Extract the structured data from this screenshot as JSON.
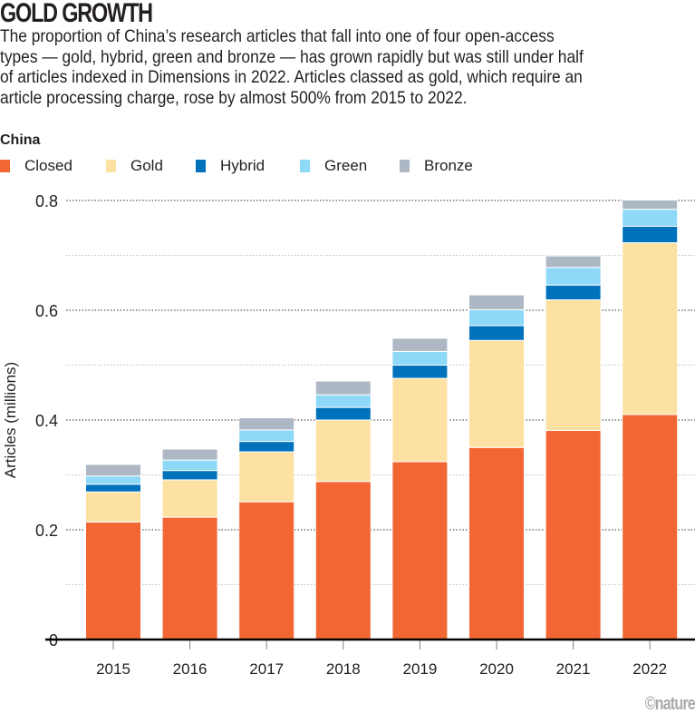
{
  "header": {
    "title": "GOLD GROWTH",
    "subtitle_lines": [
      "The proportion of China’s research articles that fall into one of four open-access",
      "types — gold, hybrid, green and bronze — has grown rapidly but was still under half",
      "of articles indexed in Dimensions in 2022. Articles classed as gold, which require an",
      "article processing charge, rose by almost 500% from 2015 to 2022."
    ]
  },
  "panel_label": "China",
  "credit": "©nature",
  "chart_data": {
    "type": "bar",
    "stacked": true,
    "title": "GOLD GROWTH",
    "subtitle": "China",
    "xlabel": "",
    "ylabel": "Articles (millions)",
    "ylim": [
      0,
      0.8
    ],
    "yticks": [
      0,
      0.2,
      0.4,
      0.6,
      0.8
    ],
    "ytick_labels": [
      "0",
      "0.2",
      "0.4",
      "0.6",
      "0.8"
    ],
    "minor_gridlines": [
      0.1,
      0.3,
      0.5,
      0.7
    ],
    "grid": true,
    "legend_placement": "top-left",
    "categories": [
      "2015",
      "2016",
      "2017",
      "2018",
      "2019",
      "2020",
      "2021",
      "2022"
    ],
    "series": [
      {
        "name": "Closed",
        "color": "#F26633",
        "values": [
          0.214,
          0.223,
          0.251,
          0.288,
          0.324,
          0.35,
          0.381,
          0.41
        ]
      },
      {
        "name": "Gold",
        "color": "#FDE1A3",
        "values": [
          0.055,
          0.068,
          0.091,
          0.112,
          0.152,
          0.195,
          0.238,
          0.313
        ]
      },
      {
        "name": "Hybrid",
        "color": "#0072BC",
        "values": [
          0.014,
          0.017,
          0.019,
          0.023,
          0.024,
          0.027,
          0.027,
          0.03
        ]
      },
      {
        "name": "Green",
        "color": "#8ED8F8",
        "values": [
          0.015,
          0.019,
          0.021,
          0.023,
          0.025,
          0.029,
          0.032,
          0.031
        ]
      },
      {
        "name": "Bronze",
        "color": "#ADB8C4",
        "values": [
          0.021,
          0.02,
          0.022,
          0.025,
          0.024,
          0.027,
          0.021,
          0.017
        ]
      }
    ]
  }
}
